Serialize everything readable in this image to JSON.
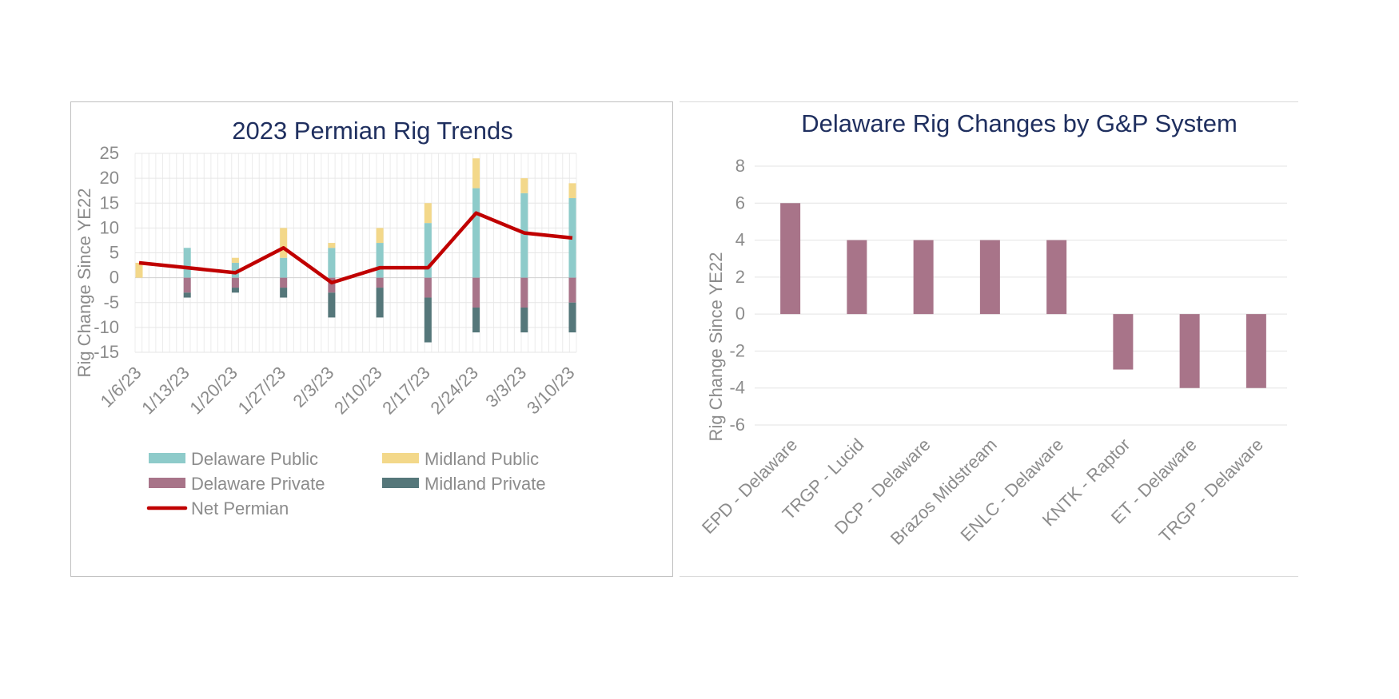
{
  "chart_data": [
    {
      "type": "bar",
      "stacked": true,
      "title": "2023 Permian Rig Trends",
      "ylabel": "Rig Change Since YE22",
      "xlabel": "",
      "ylim": [
        -15,
        25
      ],
      "yticks": [
        25,
        20,
        15,
        10,
        5,
        0,
        -5,
        -10,
        -15
      ],
      "categories": [
        "1/6/23",
        "1/13/23",
        "1/20/23",
        "1/27/23",
        "2/3/23",
        "2/10/23",
        "2/17/23",
        "2/24/23",
        "3/3/23",
        "3/10/23"
      ],
      "series": [
        {
          "name": "Delaware Public",
          "color": "#8ecbca",
          "values": [
            0,
            6,
            3,
            4,
            6,
            7,
            11,
            18,
            17,
            16
          ]
        },
        {
          "name": "Midland Public",
          "color": "#f3d88a",
          "values": [
            3,
            0,
            1,
            6,
            1,
            3,
            4,
            6,
            3,
            3
          ]
        },
        {
          "name": "Delaware Private",
          "color": "#a87489",
          "values": [
            0,
            -3,
            -2,
            -2,
            -3,
            -2,
            -4,
            -6,
            -6,
            -5
          ]
        },
        {
          "name": "Midland Private",
          "color": "#55777a",
          "values": [
            0,
            -1,
            -1,
            -2,
            -5,
            -6,
            -9,
            -5,
            -5,
            -6
          ]
        }
      ],
      "line": {
        "name": "Net Permian",
        "color": "#c00000",
        "values": [
          3,
          2,
          1,
          6,
          -1,
          2,
          2,
          13,
          9,
          8
        ]
      },
      "grid": true,
      "legend_position": "bottom"
    },
    {
      "type": "bar",
      "title": "Delaware Rig Changes by G&P System",
      "ylabel": "Rig Change Since YE22",
      "xlabel": "",
      "ylim": [
        -6,
        8
      ],
      "yticks": [
        8,
        6,
        4,
        2,
        0,
        -2,
        -4,
        -6
      ],
      "categories": [
        "EPD - Delaware",
        "TRGP - Lucid",
        "DCP - Delaware",
        "Brazos Midstream",
        "ENLC - Delaware",
        "KNTK - Raptor",
        "ET - Delaware",
        "TRGP - Delaware"
      ],
      "values": [
        6,
        4,
        4,
        4,
        4,
        -3,
        -4,
        -4
      ],
      "color": "#a87489",
      "grid": true
    }
  ]
}
